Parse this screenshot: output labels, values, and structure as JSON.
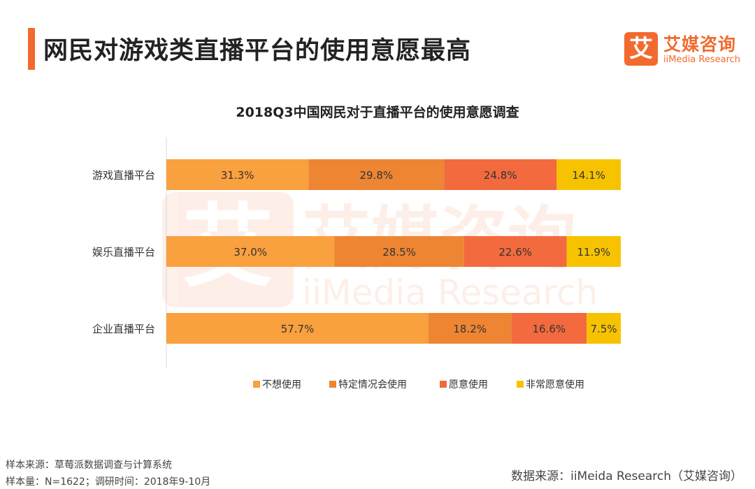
{
  "page": {
    "title": "网民对游戏类直播平台的使用意愿最高",
    "logo_mark": "艾",
    "logo_cn": "艾媒咨询",
    "logo_en": "iiMedia Research",
    "watermark_cn": "艾媒咨询",
    "watermark_en": "iiMedia Research",
    "footnote_1": "样本来源：草莓派数据调查与计算系统",
    "footnote_2": "样本量：N=1622；调研时间：2018年9-10月",
    "source": "数据来源：iiMeida Research（艾媒咨询）"
  },
  "chart_data": {
    "type": "stacked-bar-horizontal",
    "title": "2018Q3中国网民对于直播平台的使用意愿调查",
    "categories": [
      "游戏直播平台",
      "娱乐直播平台",
      "企业直播平台"
    ],
    "series": [
      {
        "name": "不想使用",
        "color": "#f9a03f",
        "values": [
          31.3,
          37.0,
          57.7
        ]
      },
      {
        "name": "特定情况会使用",
        "color": "#ee8533",
        "values": [
          29.8,
          28.5,
          18.2
        ]
      },
      {
        "name": "愿意使用",
        "color": "#f26a3e",
        "values": [
          24.8,
          22.6,
          16.6
        ]
      },
      {
        "name": "非常愿意使用",
        "color": "#f7c300",
        "values": [
          14.1,
          11.9,
          7.5
        ]
      }
    ],
    "unit": "%",
    "xlim": [
      0,
      100
    ],
    "legend": "bottom"
  }
}
